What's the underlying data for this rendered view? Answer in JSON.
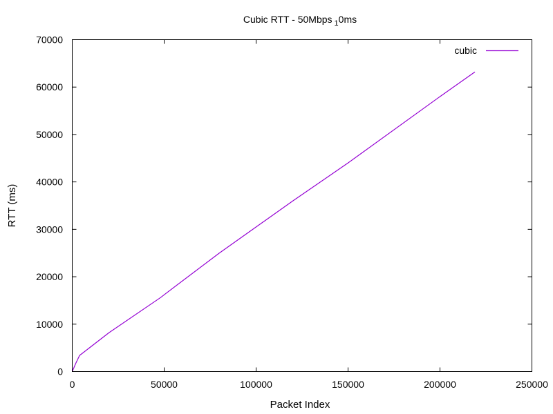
{
  "chart_data": {
    "type": "line",
    "title": "Cubic RTT - 50Mbps",
    "title_subscript": "1",
    "title_suffix": "0ms",
    "xlabel": "Packet Index",
    "ylabel": "RTT (ms)",
    "xlim": [
      0,
      250000
    ],
    "ylim": [
      0,
      70000
    ],
    "x_ticks": [
      0,
      50000,
      100000,
      150000,
      200000,
      250000
    ],
    "y_ticks": [
      0,
      10000,
      20000,
      30000,
      40000,
      50000,
      60000,
      70000
    ],
    "grid": false,
    "legend_position": "top-right",
    "series": [
      {
        "name": "cubic",
        "color": "#9400d3",
        "x": [
          0,
          2000,
          4000,
          6000,
          20000,
          48000,
          50000,
          80000,
          120000,
          150000,
          200000,
          219000
        ],
        "y": [
          0,
          1800,
          3400,
          4000,
          8200,
          15600,
          16200,
          25000,
          36000,
          44000,
          58000,
          63200
        ]
      }
    ]
  }
}
